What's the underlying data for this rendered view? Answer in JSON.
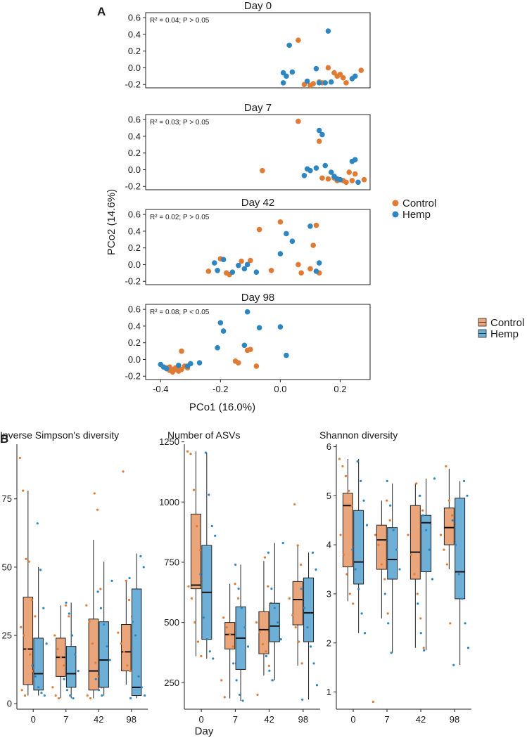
{
  "figure": {
    "panel_a_label": "A",
    "panel_b_label": "B",
    "colors": {
      "control": "#E07B35",
      "hemp": "#2E86C1",
      "control_box": "#EBA57A",
      "hemp_box": "#6EAFD8"
    }
  },
  "legend_a": {
    "items": [
      {
        "label": "Control",
        "color": "#E07B35"
      },
      {
        "label": "Hemp",
        "color": "#2E86C1"
      }
    ]
  },
  "legend_b": {
    "items": [
      {
        "label": "Control",
        "color": "#EBA57A"
      },
      {
        "label": "Hemp",
        "color": "#6EAFD8"
      }
    ]
  },
  "chart_data": [
    {
      "type": "scatter",
      "title": "Day 0",
      "annotation": "R² = 0.04; P > 0.05",
      "xlabel": "",
      "ylabel": "PCo2 (14.6%)",
      "xlim": [
        -0.45,
        0.3
      ],
      "ylim": [
        -0.24,
        0.66
      ],
      "yticks": [
        "-0.2",
        "0.0",
        "0.2",
        "0.4",
        "0.6"
      ],
      "ytick_values": [
        -0.2,
        0.0,
        0.2,
        0.4,
        0.6
      ],
      "series": [
        {
          "name": "Control",
          "x": [
            0.06,
            0.08,
            0.1,
            0.11,
            0.13,
            0.14,
            0.16,
            0.18,
            0.19,
            0.2,
            0.21,
            0.22,
            0.27
          ],
          "y": [
            0.33,
            -0.2,
            -0.21,
            -0.19,
            -0.17,
            -0.18,
            0.0,
            -0.06,
            -0.1,
            -0.08,
            -0.12,
            -0.18,
            -0.03
          ]
        },
        {
          "name": "Hemp",
          "x": [
            0.01,
            0.02,
            0.03,
            0.04,
            0.09,
            0.12,
            0.13,
            0.15,
            0.16,
            0.17,
            0.24,
            0.25,
            0.01
          ],
          "y": [
            -0.06,
            -0.1,
            0.27,
            -0.05,
            -0.16,
            -0.01,
            -0.18,
            -0.18,
            0.44,
            -0.17,
            -0.13,
            -0.1,
            -0.18
          ]
        }
      ]
    },
    {
      "type": "scatter",
      "title": "Day 7",
      "annotation": "R² = 0.03; P > 0.05",
      "xlabel": "",
      "ylabel": "PCo2 (14.6%)",
      "xlim": [
        -0.45,
        0.3
      ],
      "ylim": [
        -0.24,
        0.66
      ],
      "yticks": [
        "-0.2",
        "0.0",
        "0.2",
        "0.4",
        "0.6"
      ],
      "ytick_values": [
        -0.2,
        0.0,
        0.2,
        0.4,
        0.6
      ],
      "series": [
        {
          "name": "Control",
          "x": [
            -0.06,
            0.06,
            0.13,
            0.14,
            0.16,
            0.18,
            0.19,
            0.2,
            0.21,
            0.22,
            0.23,
            0.24,
            0.25,
            0.28
          ],
          "y": [
            -0.01,
            0.58,
            0.34,
            -0.1,
            -0.11,
            -0.1,
            -0.13,
            -0.12,
            -0.13,
            -0.15,
            -0.03,
            -0.13,
            -0.05,
            -0.12
          ]
        },
        {
          "name": "Hemp",
          "x": [
            0.08,
            0.09,
            0.1,
            0.12,
            0.13,
            0.14,
            0.15,
            0.17,
            0.18,
            0.19,
            0.2,
            0.24,
            0.25,
            0.26
          ],
          "y": [
            -0.07,
            0.01,
            -0.01,
            0.02,
            0.47,
            0.42,
            0.05,
            -0.03,
            -0.08,
            -0.11,
            -0.12,
            0.1,
            0.12,
            -0.15
          ]
        }
      ]
    },
    {
      "type": "scatter",
      "title": "Day 42",
      "annotation": "R² = 0.02; P > 0.05",
      "xlabel": "",
      "ylabel": "PCo2 (14.6%)",
      "xlim": [
        -0.45,
        0.3
      ],
      "ylim": [
        -0.24,
        0.66
      ],
      "yticks": [
        "-0.2",
        "0.0",
        "0.2",
        "0.4",
        "0.6"
      ],
      "ytick_values": [
        -0.2,
        0.0,
        0.2,
        0.4,
        0.6
      ],
      "series": [
        {
          "name": "Control",
          "x": [
            -0.24,
            -0.2,
            -0.18,
            -0.17,
            -0.13,
            -0.1,
            -0.07,
            -0.03,
            0.0,
            0.06,
            0.07,
            0.1,
            0.11,
            0.12,
            0.13
          ],
          "y": [
            -0.08,
            0.07,
            -0.1,
            -0.12,
            0.04,
            0.05,
            0.42,
            -0.07,
            0.51,
            0.0,
            -0.1,
            -0.05,
            0.23,
            0.47,
            -0.1
          ]
        },
        {
          "name": "Hemp",
          "x": [
            -0.22,
            -0.21,
            -0.19,
            -0.16,
            -0.14,
            -0.12,
            -0.11,
            -0.08,
            0.0,
            0.02,
            0.04,
            0.1,
            0.12,
            0.13
          ],
          "y": [
            0.02,
            -0.07,
            0.06,
            -0.09,
            -0.01,
            -0.05,
            0.0,
            -0.09,
            0.13,
            0.37,
            0.28,
            0.46,
            -0.08,
            0.02
          ]
        }
      ]
    },
    {
      "type": "scatter",
      "title": "Day 98",
      "annotation": "R² = 0.08; P < 0.05",
      "xlabel": "PCo1 (16.0%)",
      "ylabel": "PCo2 (14.6%)",
      "xlim": [
        -0.45,
        0.3
      ],
      "ylim": [
        -0.24,
        0.66
      ],
      "xticks": [
        "-0.4",
        "-0.2",
        "0.0",
        "0.2"
      ],
      "xtick_values": [
        -0.4,
        -0.2,
        0.0,
        0.2
      ],
      "yticks": [
        "-0.2",
        "0.0",
        "0.2",
        "0.4",
        "0.6"
      ],
      "ytick_values": [
        -0.2,
        0.0,
        0.2,
        0.4,
        0.6
      ],
      "series": [
        {
          "name": "Control",
          "x": [
            -0.38,
            -0.37,
            -0.37,
            -0.36,
            -0.36,
            -0.35,
            -0.35,
            -0.34,
            -0.34,
            -0.33,
            -0.33,
            -0.32,
            -0.31,
            -0.15,
            -0.14,
            -0.11,
            -0.1,
            -0.08
          ],
          "y": [
            -0.1,
            -0.13,
            -0.09,
            -0.12,
            -0.15,
            -0.1,
            -0.12,
            -0.14,
            -0.09,
            -0.12,
            0.1,
            -0.08,
            -0.1,
            -0.02,
            -0.04,
            0.11,
            0.12,
            -0.08
          ]
        },
        {
          "name": "Hemp",
          "x": [
            -0.4,
            -0.39,
            -0.38,
            -0.34,
            -0.31,
            -0.3,
            -0.27,
            -0.21,
            -0.2,
            -0.19,
            -0.12,
            -0.11,
            -0.07,
            0.0,
            0.02
          ],
          "y": [
            -0.06,
            -0.09,
            -0.11,
            -0.07,
            -0.08,
            -0.05,
            -0.04,
            0.14,
            0.44,
            0.34,
            0.17,
            0.57,
            0.38,
            0.39,
            0.05
          ]
        }
      ]
    },
    {
      "type": "box",
      "title": "Inverse Simpson's diversity",
      "xlabel": "",
      "ylabel": "",
      "categories": [
        "0",
        "7",
        "42",
        "98"
      ],
      "ylim": [
        -2,
        95
      ],
      "yticks": [
        "0",
        "25",
        "50",
        "75"
      ],
      "ytick_values": [
        0,
        25,
        50,
        75
      ],
      "series": [
        {
          "name": "Control",
          "boxes": [
            {
              "min": 3,
              "q1": 7,
              "median": 20,
              "q3": 39,
              "max": 78
            },
            {
              "min": 2,
              "q1": 10,
              "median": 17,
              "q3": 24,
              "max": 36
            },
            {
              "min": 2,
              "q1": 5,
              "median": 12,
              "q3": 31,
              "max": 60
            },
            {
              "min": 7,
              "q1": 12,
              "median": 19,
              "q3": 29,
              "max": 45
            }
          ],
          "points": [
            [
              90,
              78,
              53,
              52,
              38,
              32,
              28,
              25,
              20,
              18,
              12,
              8,
              5,
              3
            ],
            [
              36,
              32,
              25,
              20,
              17,
              14,
              10,
              6,
              3,
              2
            ],
            [
              77,
              71,
              42,
              36,
              30,
              22,
              15,
              10,
              6,
              3,
              2
            ],
            [
              85,
              45,
              38,
              32,
              26,
              22,
              19,
              14,
              12,
              8
            ]
          ]
        },
        {
          "name": "Hemp",
          "boxes": [
            {
              "min": 3,
              "q1": 5,
              "median": 11,
              "q3": 24,
              "max": 50
            },
            {
              "min": 2,
              "q1": 6,
              "median": 11,
              "q3": 21,
              "max": 37
            },
            {
              "min": 3,
              "q1": 6,
              "median": 16,
              "q3": 30,
              "max": 52
            },
            {
              "min": 2,
              "q1": 3,
              "median": 6,
              "q3": 42,
              "max": 55
            }
          ],
          "points": [
            [
              66,
              49,
              35,
              22,
              14,
              10,
              6,
              4,
              3
            ],
            [
              37,
              33,
              25,
              18,
              12,
              9,
              5,
              3,
              2
            ],
            [
              45,
              41,
              35,
              29,
              21,
              16,
              9,
              5,
              3
            ],
            [
              54,
              50,
              46,
              30,
              25,
              10,
              6,
              3,
              2
            ]
          ]
        }
      ]
    },
    {
      "type": "box",
      "title": "Number of ASVs",
      "xlabel": "Day",
      "ylabel": "",
      "categories": [
        "0",
        "7",
        "42",
        "98"
      ],
      "ylim": [
        140,
        1240
      ],
      "yticks": [
        "250",
        "500",
        "750",
        "1000",
        "1250"
      ],
      "ytick_values": [
        250,
        500,
        750,
        1000,
        1250
      ],
      "series": [
        {
          "name": "Control",
          "boxes": [
            {
              "min": 360,
              "q1": 640,
              "median": 655,
              "q3": 950,
              "max": 1210
            },
            {
              "min": 185,
              "q1": 390,
              "median": 450,
              "q3": 500,
              "max": 660
            },
            {
              "min": 280,
              "q1": 370,
              "median": 470,
              "q3": 545,
              "max": 755
            },
            {
              "min": 320,
              "q1": 490,
              "median": 595,
              "q3": 670,
              "max": 820
            }
          ],
          "points": [
            [
              1210,
              1200,
              1050,
              900,
              800,
              700,
              650,
              600,
              500,
              420,
              360
            ],
            [
              660,
              600,
              520,
              480,
              450,
              400,
              330,
              260,
              190
            ],
            [
              770,
              650,
              580,
              500,
              460,
              410,
              380,
              320,
              260,
              200
            ],
            [
              990,
              820,
              740,
              680,
              600,
              530,
              480,
              420,
              330
            ]
          ]
        },
        {
          "name": "Hemp",
          "boxes": [
            {
              "min": 350,
              "q1": 430,
              "median": 625,
              "q3": 820,
              "max": 1205
            },
            {
              "min": 175,
              "q1": 305,
              "median": 435,
              "q3": 565,
              "max": 740
            },
            {
              "min": 260,
              "q1": 420,
              "median": 485,
              "q3": 580,
              "max": 830
            },
            {
              "min": 180,
              "q1": 420,
              "median": 540,
              "q3": 685,
              "max": 790
            }
          ],
          "points": [
            [
              1205,
              1030,
              900,
              860,
              700,
              520,
              430,
              380,
              350
            ],
            [
              740,
              640,
              560,
              480,
              400,
              330,
              260,
              200,
              175
            ],
            [
              830,
              790,
              640,
              560,
              500,
              430,
              360,
              300,
              260
            ],
            [
              790,
              720,
              640,
              560,
              480,
              400,
              330,
              240,
              180
            ]
          ]
        }
      ]
    },
    {
      "type": "box",
      "title": "Shannon diversity",
      "xlabel": "",
      "ylabel": "",
      "categories": [
        "0",
        "7",
        "42",
        "98"
      ],
      "ylim": [
        0.65,
        6.05
      ],
      "yticks": [
        "1",
        "2",
        "3",
        "4",
        "5",
        "6"
      ],
      "ytick_values": [
        1,
        2,
        3,
        4,
        5,
        6
      ],
      "series": [
        {
          "name": "Control",
          "boxes": [
            {
              "min": 2.85,
              "q1": 3.55,
              "median": 4.8,
              "q3": 5.05,
              "max": 5.75
            },
            {
              "min": 2.5,
              "q1": 3.5,
              "median": 4.1,
              "q3": 4.4,
              "max": 4.9
            },
            {
              "min": 1.9,
              "q1": 3.3,
              "median": 3.85,
              "q3": 4.8,
              "max": 5.25
            },
            {
              "min": 3.5,
              "q1": 4.0,
              "median": 4.35,
              "q3": 4.75,
              "max": 5.55
            }
          ],
          "points": [
            [
              5.75,
              5.6,
              5.4,
              5.1,
              4.8,
              4.5,
              4.2,
              3.8,
              3.4,
              3.0,
              2.8
            ],
            [
              4.9,
              4.5,
              4.2,
              4.0,
              3.6,
              3.3,
              2.6,
              0.8
            ],
            [
              5.25,
              5.0,
              4.7,
              4.2,
              3.8,
              3.4,
              3.0,
              2.5,
              1.9
            ],
            [
              5.6,
              4.9,
              4.6,
              4.4,
              4.2,
              3.9,
              3.6,
              2.4
            ]
          ]
        },
        {
          "name": "Hemp",
          "boxes": [
            {
              "min": 2.2,
              "q1": 3.2,
              "median": 3.65,
              "q3": 4.7,
              "max": 5.75
            },
            {
              "min": 1.8,
              "q1": 3.3,
              "median": 3.7,
              "q3": 4.35,
              "max": 5.25
            },
            {
              "min": 1.85,
              "q1": 3.45,
              "median": 4.45,
              "q3": 4.6,
              "max": 5.35
            },
            {
              "min": 1.55,
              "q1": 2.9,
              "median": 3.45,
              "q3": 4.95,
              "max": 5.3
            }
          ],
          "points": [
            [
              5.7,
              5.3,
              4.9,
              4.4,
              3.9,
              3.5,
              3.1,
              2.6,
              2.2
            ],
            [
              5.3,
              4.8,
              4.3,
              3.9,
              3.5,
              3.0,
              2.4,
              1.8
            ],
            [
              5.35,
              5.0,
              4.6,
              4.3,
              3.9,
              3.3,
              2.8,
              2.2,
              1.85
            ],
            [
              5.3,
              5.0,
              4.5,
              4.0,
              3.4,
              2.9,
              2.4,
              1.9,
              1.55
            ]
          ]
        }
      ]
    }
  ]
}
